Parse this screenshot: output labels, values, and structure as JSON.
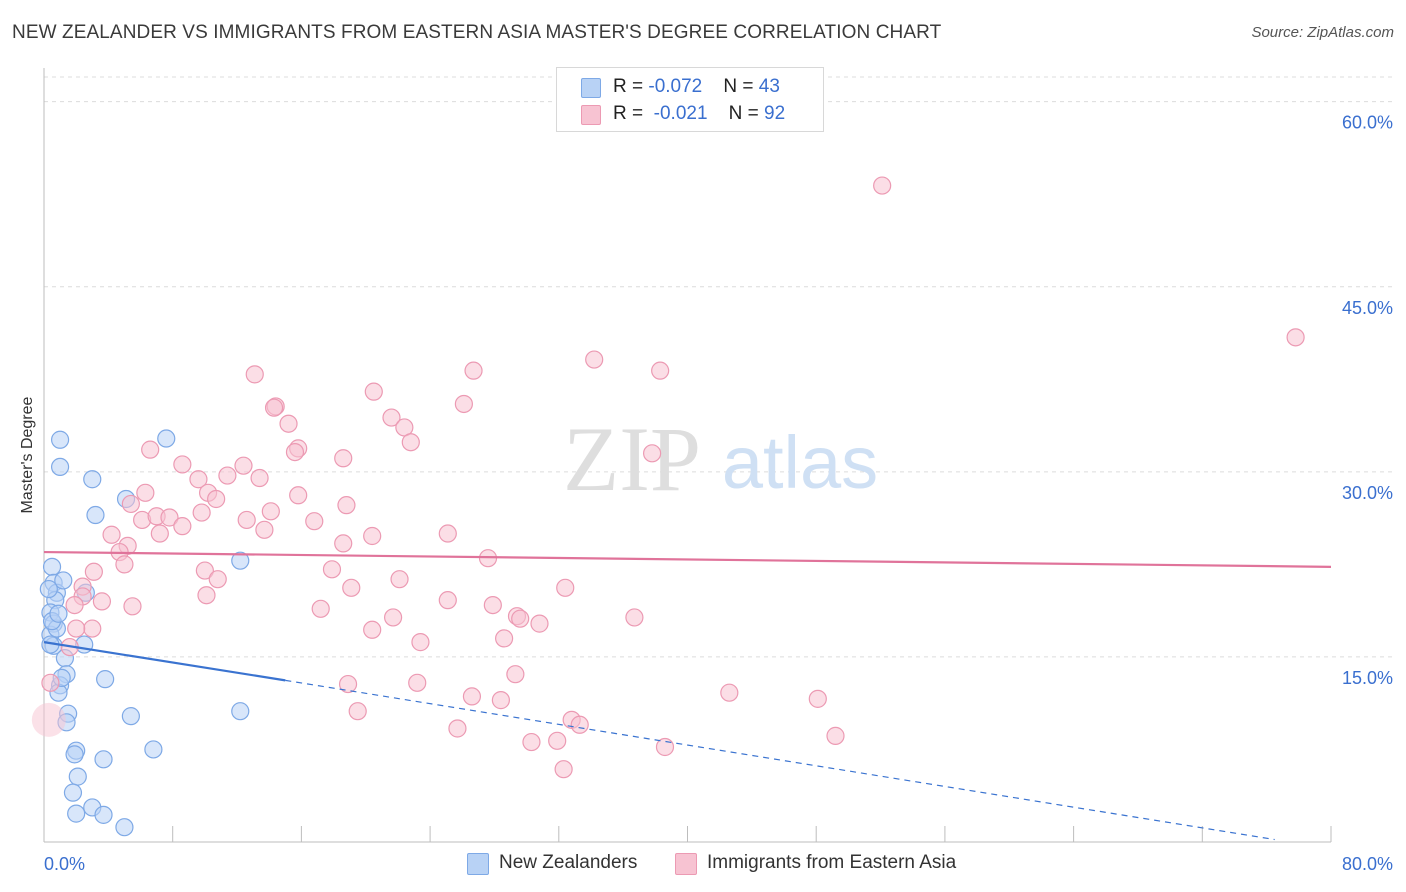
{
  "title": "NEW ZEALANDER VS IMMIGRANTS FROM EASTERN ASIA MASTER'S DEGREE CORRELATION CHART",
  "source": "Source: ZipAtlas.com",
  "watermark": {
    "zip": "ZIP",
    "atlas": "atlas"
  },
  "legend": {
    "rows": [
      {
        "r_label": "R = ",
        "r_value": "-0.072",
        "n_label": "N = ",
        "n_value": "43"
      },
      {
        "r_label": "R = ",
        "r_value": "-0.021",
        "n_label": "N = ",
        "n_value": "92"
      }
    ]
  },
  "colors": {
    "blue_fill": "#b8d2f5",
    "blue_stroke": "#7ea9e6",
    "blue_line": "#3a73d0",
    "pink_fill": "#f7c3d2",
    "pink_stroke": "#ec9ab3",
    "pink_line": "#e0739a",
    "tick_text": "#3a6fcf"
  },
  "chart_data": {
    "type": "scatter",
    "title": "NEW ZEALANDER VS IMMIGRANTS FROM EASTERN ASIA MASTER'S DEGREE CORRELATION CHART",
    "xlabel": "",
    "ylabel": "Master's Degree",
    "xlim": [
      0,
      80
    ],
    "ylim": [
      0,
      62
    ],
    "x_tick_labels": [
      "0.0%",
      "80.0%"
    ],
    "y_ticks": [
      15,
      30,
      45,
      60
    ],
    "y_tick_labels": [
      "15.0%",
      "30.0%",
      "45.0%",
      "60.0%"
    ],
    "grid": true,
    "legend_position": "top-center",
    "series": [
      {
        "name": "New Zealanders",
        "color": "#b8d2f5",
        "trend": {
          "x": [
            0,
            15
          ],
          "y": [
            16.2,
            13.1
          ],
          "dashed_to": [
            76.5,
            0.2
          ]
        },
        "points": [
          [
            1,
            32.6
          ],
          [
            1,
            30.4
          ],
          [
            3,
            29.4
          ],
          [
            3.2,
            26.5
          ],
          [
            5.1,
            27.8
          ],
          [
            7.6,
            32.7
          ],
          [
            0.5,
            22.3
          ],
          [
            0.6,
            21.0
          ],
          [
            0.8,
            20.2
          ],
          [
            1.2,
            21.2
          ],
          [
            2.6,
            20.2
          ],
          [
            0.7,
            19.6
          ],
          [
            0.4,
            18.6
          ],
          [
            0.6,
            17.7
          ],
          [
            0.4,
            16.8
          ],
          [
            0.8,
            17.3
          ],
          [
            0.6,
            15.9
          ],
          [
            2.5,
            16.0
          ],
          [
            1.3,
            14.9
          ],
          [
            1.4,
            13.6
          ],
          [
            1.0,
            12.7
          ],
          [
            0.9,
            12.1
          ],
          [
            1.5,
            10.4
          ],
          [
            1.4,
            9.7
          ],
          [
            2.0,
            7.4
          ],
          [
            1.9,
            7.1
          ],
          [
            3.8,
            13.2
          ],
          [
            5.4,
            10.2
          ],
          [
            6.8,
            7.5
          ],
          [
            3.7,
            6.7
          ],
          [
            2.1,
            5.3
          ],
          [
            1.8,
            4.0
          ],
          [
            3.0,
            2.8
          ],
          [
            2.0,
            2.3
          ],
          [
            3.7,
            2.2
          ],
          [
            5.0,
            1.2
          ],
          [
            12.2,
            22.8
          ],
          [
            12.2,
            10.6
          ],
          [
            0.3,
            20.5
          ],
          [
            0.5,
            17.9
          ],
          [
            1.1,
            13.3
          ],
          [
            0.4,
            16.0
          ],
          [
            0.9,
            18.5
          ]
        ]
      },
      {
        "name": "Immigrants from Eastern Asia",
        "color": "#f7c3d2",
        "trend": {
          "x": [
            0,
            80
          ],
          "y": [
            23.5,
            22.3
          ]
        },
        "points": [
          [
            52.1,
            53.2
          ],
          [
            77.8,
            40.9
          ],
          [
            13.1,
            37.9
          ],
          [
            26.7,
            38.2
          ],
          [
            34.2,
            39.1
          ],
          [
            38.3,
            38.2
          ],
          [
            20.5,
            36.5
          ],
          [
            26.1,
            35.5
          ],
          [
            14.4,
            35.3
          ],
          [
            14.3,
            35.2
          ],
          [
            21.6,
            34.4
          ],
          [
            22.4,
            33.6
          ],
          [
            15.2,
            33.9
          ],
          [
            22.8,
            32.4
          ],
          [
            15.8,
            31.9
          ],
          [
            15.6,
            31.6
          ],
          [
            6.6,
            31.8
          ],
          [
            18.6,
            31.1
          ],
          [
            37.8,
            31.5
          ],
          [
            8.6,
            30.6
          ],
          [
            12.4,
            30.5
          ],
          [
            9.6,
            29.4
          ],
          [
            11.4,
            29.7
          ],
          [
            13.4,
            29.5
          ],
          [
            6.3,
            28.3
          ],
          [
            10.2,
            28.3
          ],
          [
            10.7,
            27.8
          ],
          [
            15.8,
            28.1
          ],
          [
            5.4,
            27.4
          ],
          [
            18.8,
            27.3
          ],
          [
            14.1,
            26.8
          ],
          [
            9.8,
            26.7
          ],
          [
            6.1,
            26.1
          ],
          [
            7.0,
            26.4
          ],
          [
            7.8,
            26.3
          ],
          [
            12.6,
            26.1
          ],
          [
            8.6,
            25.6
          ],
          [
            16.8,
            26.0
          ],
          [
            13.7,
            25.3
          ],
          [
            7.2,
            25.0
          ],
          [
            4.2,
            24.9
          ],
          [
            25.1,
            25.0
          ],
          [
            20.4,
            24.8
          ],
          [
            18.6,
            24.2
          ],
          [
            5.2,
            24.0
          ],
          [
            4.7,
            23.5
          ],
          [
            27.6,
            23.0
          ],
          [
            5.0,
            22.5
          ],
          [
            10.0,
            22.0
          ],
          [
            17.9,
            22.1
          ],
          [
            3.1,
            21.9
          ],
          [
            10.8,
            21.3
          ],
          [
            22.1,
            21.3
          ],
          [
            19.1,
            20.6
          ],
          [
            32.4,
            20.6
          ],
          [
            2.4,
            20.7
          ],
          [
            10.1,
            20.0
          ],
          [
            2.4,
            19.9
          ],
          [
            25.1,
            19.6
          ],
          [
            3.6,
            19.5
          ],
          [
            5.5,
            19.1
          ],
          [
            1.9,
            19.2
          ],
          [
            17.2,
            18.9
          ],
          [
            27.9,
            19.2
          ],
          [
            21.7,
            18.2
          ],
          [
            36.7,
            18.2
          ],
          [
            29.4,
            18.3
          ],
          [
            29.6,
            18.1
          ],
          [
            30.8,
            17.7
          ],
          [
            20.4,
            17.2
          ],
          [
            3.0,
            17.3
          ],
          [
            2.0,
            17.3
          ],
          [
            23.4,
            16.2
          ],
          [
            28.6,
            16.5
          ],
          [
            1.6,
            15.8
          ],
          [
            29.3,
            13.6
          ],
          [
            26.6,
            11.8
          ],
          [
            18.9,
            12.8
          ],
          [
            23.2,
            12.9
          ],
          [
            42.6,
            12.1
          ],
          [
            48.1,
            11.6
          ],
          [
            19.5,
            10.6
          ],
          [
            28.4,
            11.5
          ],
          [
            25.7,
            9.2
          ],
          [
            32.8,
            9.9
          ],
          [
            30.3,
            8.1
          ],
          [
            31.9,
            8.2
          ],
          [
            38.6,
            7.7
          ],
          [
            33.3,
            9.5
          ],
          [
            49.2,
            8.6
          ],
          [
            32.3,
            5.9
          ],
          [
            0.4,
            12.9
          ]
        ]
      }
    ]
  }
}
